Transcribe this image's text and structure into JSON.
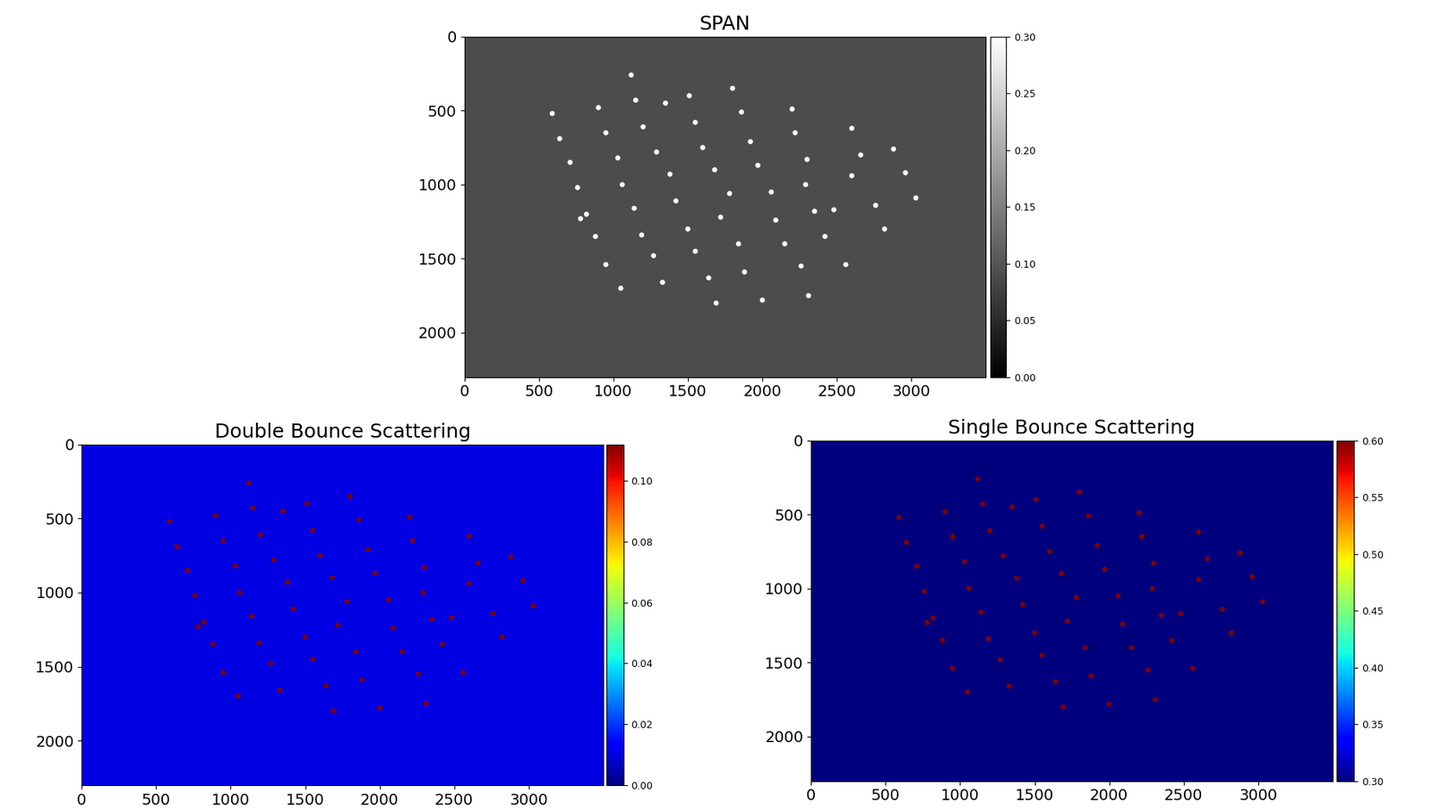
{
  "chart_data": [
    {
      "type": "image",
      "title": "SPAN",
      "color": "gray",
      "marker": "o",
      "xlim": [
        0,
        3500
      ],
      "ylim": [
        2300,
        0
      ],
      "xticks": [
        0,
        500,
        1000,
        1500,
        2000,
        2500,
        3000
      ],
      "yticks": [
        0,
        500,
        1000,
        1500,
        2000
      ],
      "background": 0.09,
      "x": [
        590,
        640,
        710,
        760,
        780,
        820,
        880,
        900,
        950,
        950,
        1030,
        1060,
        1050,
        1120,
        1150,
        1140,
        1200,
        1190,
        1270,
        1290,
        1330,
        1350,
        1380,
        1420,
        1510,
        1500,
        1550,
        1550,
        1600,
        1640,
        1680,
        1690,
        1720,
        1800,
        1780,
        1840,
        1860,
        1880,
        1920,
        2000,
        1970,
        2060,
        2090,
        2150,
        2200,
        2220,
        2260,
        2290,
        2300,
        2310,
        2350,
        2420,
        2480,
        2560,
        2600,
        2600,
        2660,
        2760,
        2820,
        2880,
        2960,
        3030
      ],
      "y": [
        520,
        690,
        850,
        1020,
        1230,
        1200,
        1350,
        480,
        1540,
        650,
        820,
        1000,
        1700,
        260,
        430,
        1160,
        610,
        1340,
        1480,
        780,
        1660,
        450,
        930,
        1110,
        400,
        1300,
        580,
        1450,
        750,
        1630,
        900,
        1800,
        1220,
        350,
        1060,
        1400,
        510,
        1590,
        710,
        1780,
        870,
        1050,
        1240,
        1400,
        490,
        650,
        1550,
        1000,
        830,
        1750,
        1180,
        1350,
        1170,
        1540,
        620,
        940,
        800,
        1140,
        1300,
        760,
        920,
        1090
      ],
      "target_value": 0.3,
      "colorbar": {
        "range": [
          0,
          0.3
        ],
        "ticks": [
          {
            "value": 0.0,
            "label": "0.00"
          },
          {
            "value": 0.05,
            "label": "0.05"
          },
          {
            "value": 0.1,
            "label": "0.10"
          },
          {
            "value": 0.15,
            "label": "0.15"
          },
          {
            "value": 0.2,
            "label": "0.20"
          },
          {
            "value": 0.25,
            "label": "0.25"
          },
          {
            "value": 0.3,
            "label": "0.30"
          }
        ]
      }
    },
    {
      "type": "image",
      "title": "Double Bounce Scattering",
      "color": "jet",
      "marker": "o",
      "xlim": [
        0,
        3500
      ],
      "ylim": [
        2300,
        0
      ],
      "xticks": [
        0,
        500,
        1000,
        1500,
        2000,
        2500,
        3000
      ],
      "yticks": [
        0,
        500,
        1000,
        1500,
        2000
      ],
      "background": 0.01,
      "x": [
        590,
        640,
        710,
        760,
        780,
        820,
        880,
        900,
        950,
        950,
        1030,
        1060,
        1050,
        1120,
        1150,
        1140,
        1200,
        1190,
        1270,
        1290,
        1330,
        1350,
        1380,
        1420,
        1510,
        1500,
        1550,
        1550,
        1600,
        1640,
        1680,
        1690,
        1720,
        1800,
        1780,
        1840,
        1860,
        1880,
        1920,
        2000,
        1970,
        2060,
        2090,
        2150,
        2200,
        2220,
        2260,
        2290,
        2300,
        2310,
        2350,
        2420,
        2480,
        2560,
        2600,
        2600,
        2660,
        2760,
        2820,
        2880,
        2960,
        3030
      ],
      "y": [
        520,
        690,
        850,
        1020,
        1230,
        1200,
        1350,
        480,
        1540,
        650,
        820,
        1000,
        1700,
        260,
        430,
        1160,
        610,
        1340,
        1480,
        780,
        1660,
        450,
        930,
        1110,
        400,
        1300,
        580,
        1450,
        750,
        1630,
        900,
        1800,
        1220,
        350,
        1060,
        1400,
        510,
        1590,
        710,
        1780,
        870,
        1050,
        1240,
        1400,
        490,
        650,
        1550,
        1000,
        830,
        1750,
        1180,
        1350,
        1170,
        1540,
        620,
        940,
        800,
        1140,
        1300,
        760,
        920,
        1090
      ],
      "target_value": 0.112,
      "colorbar": {
        "range": [
          0,
          0.112
        ],
        "ticks": [
          {
            "value": 0.0,
            "label": "0.00"
          },
          {
            "value": 0.02,
            "label": "0.02"
          },
          {
            "value": 0.04,
            "label": "0.04"
          },
          {
            "value": 0.06,
            "label": "0.06"
          },
          {
            "value": 0.08,
            "label": "0.08"
          },
          {
            "value": 0.1,
            "label": "0.10"
          }
        ]
      }
    },
    {
      "type": "image",
      "title": "Single Bounce Scattering",
      "color": "jet",
      "marker": "o",
      "xlim": [
        0,
        3500
      ],
      "ylim": [
        2300,
        0
      ],
      "xticks": [
        0,
        500,
        1000,
        1500,
        2000,
        2500,
        3000
      ],
      "yticks": [
        0,
        500,
        1000,
        1500,
        2000
      ],
      "background": 0.3,
      "x": [
        590,
        640,
        710,
        760,
        780,
        820,
        880,
        900,
        950,
        950,
        1030,
        1060,
        1050,
        1120,
        1150,
        1140,
        1200,
        1190,
        1270,
        1290,
        1330,
        1350,
        1380,
        1420,
        1510,
        1500,
        1550,
        1550,
        1600,
        1640,
        1680,
        1690,
        1720,
        1800,
        1780,
        1840,
        1860,
        1880,
        1920,
        2000,
        1970,
        2060,
        2090,
        2150,
        2200,
        2220,
        2260,
        2290,
        2300,
        2310,
        2350,
        2420,
        2480,
        2560,
        2600,
        2600,
        2660,
        2760,
        2820,
        2880,
        2960,
        3030
      ],
      "y": [
        520,
        690,
        850,
        1020,
        1230,
        1200,
        1350,
        480,
        1540,
        650,
        820,
        1000,
        1700,
        260,
        430,
        1160,
        610,
        1340,
        1480,
        780,
        1660,
        450,
        930,
        1110,
        400,
        1300,
        580,
        1450,
        750,
        1630,
        900,
        1800,
        1220,
        350,
        1060,
        1400,
        510,
        1590,
        710,
        1780,
        870,
        1050,
        1240,
        1400,
        490,
        650,
        1550,
        1000,
        830,
        1750,
        1180,
        1350,
        1170,
        1540,
        620,
        940,
        800,
        1140,
        1300,
        760,
        920,
        1090
      ],
      "target_value": 0.6,
      "colorbar": {
        "range": [
          0.3,
          0.6
        ],
        "ticks": [
          {
            "value": 0.3,
            "label": "0.30"
          },
          {
            "value": 0.35,
            "label": "0.35"
          },
          {
            "value": 0.4,
            "label": "0.40"
          },
          {
            "value": 0.45,
            "label": "0.45"
          },
          {
            "value": 0.5,
            "label": "0.50"
          },
          {
            "value": 0.55,
            "label": "0.55"
          },
          {
            "value": 0.6,
            "label": "0.60"
          }
        ]
      }
    }
  ]
}
